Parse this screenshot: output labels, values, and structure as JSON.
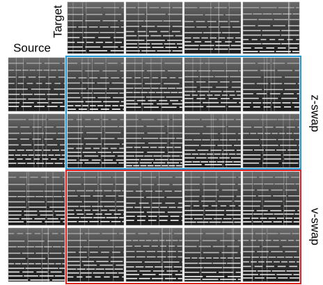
{
  "labels": {
    "target": "Target",
    "source": "Source",
    "z_swap": "z-swap",
    "v_swap": "v-swap"
  }
}
